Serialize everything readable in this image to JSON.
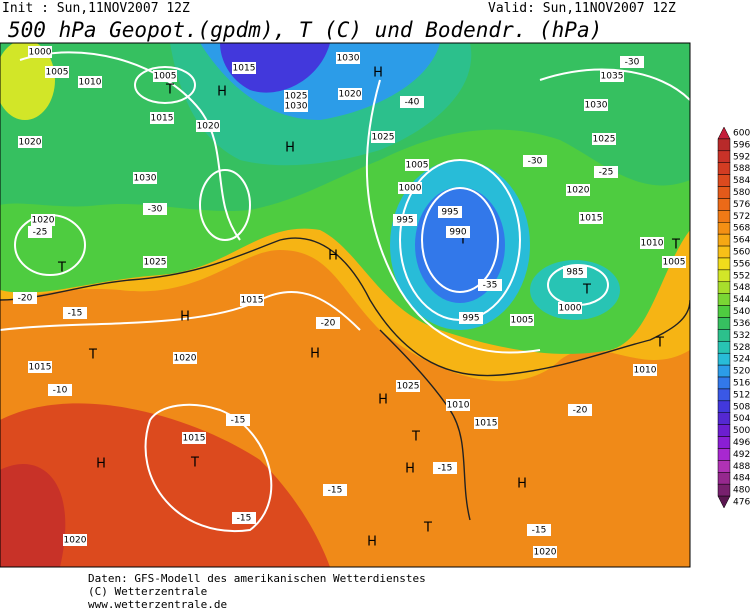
{
  "header": {
    "init": "Init : Sun,11NOV2007 12Z",
    "valid": "Valid: Sun,11NOV2007 12Z",
    "title": "500 hPa Geopot.(gpdm), T (C) und Bodendr. (hPa)"
  },
  "map": {
    "labels": [
      "1000",
      "1005",
      "1010",
      "1005",
      "T",
      "1015",
      "1020",
      "H",
      "1015",
      "1025",
      "1030",
      "1030",
      "1020",
      "H",
      "1025",
      "H",
      "1005",
      "1000",
      "995",
      "995",
      "T",
      "990",
      "995",
      "1005",
      "985",
      "T",
      "1000",
      "1010",
      "T",
      "1005",
      "1035",
      "1030",
      "1025",
      "1020",
      "1015",
      "1020",
      "1030",
      "T",
      "1020",
      "1025",
      "1015",
      "H",
      "H",
      "1015",
      "T",
      "1020",
      "1015",
      "T",
      "H",
      "1020",
      "H",
      "1025",
      "H",
      "1010",
      "1015",
      "T",
      "H",
      "T",
      "H",
      "1020",
      "H",
      "T",
      "1010",
      "-30",
      "-25",
      "-20",
      "-15",
      "-10",
      "-15",
      "-15",
      "-15",
      "-20",
      "-35",
      "-40",
      "-30",
      "-25",
      "-30",
      "-20",
      "-15",
      "-15"
    ]
  },
  "colorbar": {
    "ticks": [
      600,
      596,
      592,
      588,
      584,
      580,
      576,
      572,
      568,
      564,
      560,
      556,
      552,
      548,
      544,
      540,
      536,
      532,
      528,
      524,
      520,
      516,
      512,
      508,
      504,
      500,
      496,
      492,
      488,
      484,
      480,
      476
    ],
    "colors": [
      "#c41e3a",
      "#b82a2a",
      "#c83228",
      "#d23c22",
      "#dc4a1e",
      "#e45a1a",
      "#ec6a18",
      "#f07a16",
      "#f49014",
      "#f6a814",
      "#f8c018",
      "#f0dc1c",
      "#d2e628",
      "#a8de2c",
      "#7ad634",
      "#4ecc40",
      "#36c060",
      "#2cc08c",
      "#28c4b4",
      "#28bcd8",
      "#2c9ce8",
      "#3278ea",
      "#3a58e6",
      "#4238dc",
      "#5428d2",
      "#6c1ed0",
      "#8a1ed4",
      "#a828d0",
      "#b032b4",
      "#96288e",
      "#78206e",
      "#5a1650"
    ]
  },
  "footer": [
    "Daten: GFS-Modell des amerikanischen Wetterdienstes",
    "(C) Wetterzentrale",
    "www.wetterzentrale.de"
  ]
}
